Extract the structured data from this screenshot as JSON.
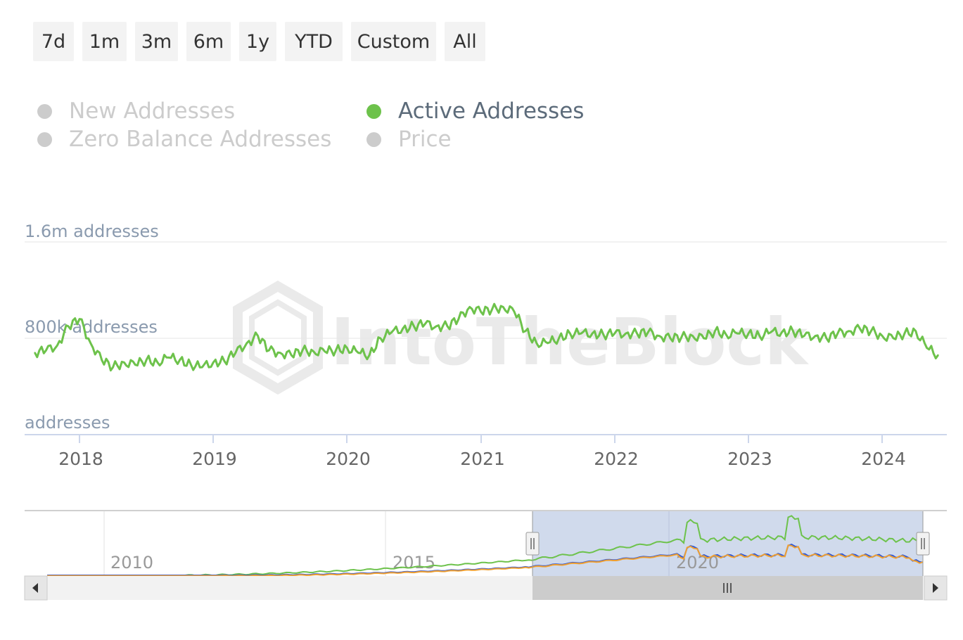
{
  "range_buttons": [
    "7d",
    "1m",
    "3m",
    "6m",
    "1y",
    "YTD",
    "Custom",
    "All"
  ],
  "legend": [
    {
      "label": "New Addresses",
      "active": false
    },
    {
      "label": "Active Addresses",
      "active": true
    },
    {
      "label": "Zero Balance Addresses",
      "active": false
    },
    {
      "label": "Price",
      "active": false
    }
  ],
  "watermark": "IntoTheBlock",
  "colors": {
    "active_series": "#6dc24b",
    "navigator_blue": "#2f57d6",
    "navigator_orange": "#f0a030",
    "navigator_selection": "#cbd6ea",
    "axis_text": "#666666",
    "ylabel_text": "#8a9aae"
  },
  "scrollbar_icons": {
    "left": "arrow-left-icon",
    "right": "arrow-right-icon",
    "thumb": "grip-icon"
  },
  "chart_data": [
    {
      "type": "line",
      "series": [
        {
          "name": "Active Addresses",
          "x": [
            "2017-09",
            "2017-10",
            "2017-11",
            "2017-12",
            "2018-01",
            "2018-02",
            "2018-03",
            "2018-04",
            "2018-05",
            "2018-06",
            "2018-07",
            "2018-08",
            "2018-09",
            "2018-10",
            "2018-11",
            "2018-12",
            "2019-01",
            "2019-02",
            "2019-03",
            "2019-04",
            "2019-05",
            "2019-06",
            "2019-07",
            "2019-08",
            "2019-09",
            "2019-10",
            "2019-11",
            "2019-12",
            "2020-01",
            "2020-02",
            "2020-03",
            "2020-04",
            "2020-05",
            "2020-06",
            "2020-07",
            "2020-08",
            "2020-09",
            "2020-10",
            "2020-11",
            "2020-12",
            "2021-01",
            "2021-02",
            "2021-03",
            "2021-04",
            "2021-05",
            "2021-06",
            "2021-07",
            "2021-08",
            "2021-09",
            "2021-10",
            "2021-11",
            "2021-12",
            "2022-01",
            "2022-02",
            "2022-03",
            "2022-04",
            "2022-05",
            "2022-06",
            "2022-07",
            "2022-08",
            "2022-09",
            "2022-10",
            "2022-11",
            "2022-12",
            "2023-01",
            "2023-02",
            "2023-03",
            "2023-04",
            "2023-05",
            "2023-06",
            "2023-07",
            "2023-08",
            "2023-09",
            "2023-10",
            "2023-11",
            "2023-12",
            "2024-01",
            "2024-02",
            "2024-03",
            "2024-04",
            "2024-05",
            "2024-06"
          ],
          "values": [
            680000,
            700000,
            740000,
            900000,
            960000,
            760000,
            620000,
            560000,
            600000,
            580000,
            620000,
            600000,
            640000,
            620000,
            580000,
            560000,
            600000,
            610000,
            680000,
            760000,
            820000,
            700000,
            680000,
            660000,
            700000,
            690000,
            690000,
            700000,
            720000,
            680000,
            660000,
            800000,
            850000,
            880000,
            900000,
            920000,
            900000,
            900000,
            960000,
            1060000,
            1020000,
            1040000,
            1060000,
            1020000,
            860000,
            760000,
            760000,
            800000,
            840000,
            840000,
            840000,
            830000,
            840000,
            840000,
            840000,
            850000,
            820000,
            800000,
            810000,
            820000,
            800000,
            860000,
            830000,
            840000,
            840000,
            820000,
            850000,
            850000,
            860000,
            820000,
            820000,
            800000,
            840000,
            860000,
            880000,
            860000,
            820000,
            800000,
            840000,
            860000,
            720000,
            660000
          ]
        }
      ],
      "ylabel_ticks": [
        "1.6m addresses",
        "800k addresses",
        "addresses"
      ],
      "xtick_labels": [
        "2018",
        "2019",
        "2020",
        "2021",
        "2022",
        "2023",
        "2024"
      ],
      "ylim": [
        0,
        1600000
      ],
      "grid": true
    },
    {
      "type": "line",
      "name": "navigator",
      "xtick_labels": [
        "2010",
        "2015",
        "2020"
      ],
      "selected_range": [
        "2017-09",
        "2024-06"
      ]
    }
  ]
}
